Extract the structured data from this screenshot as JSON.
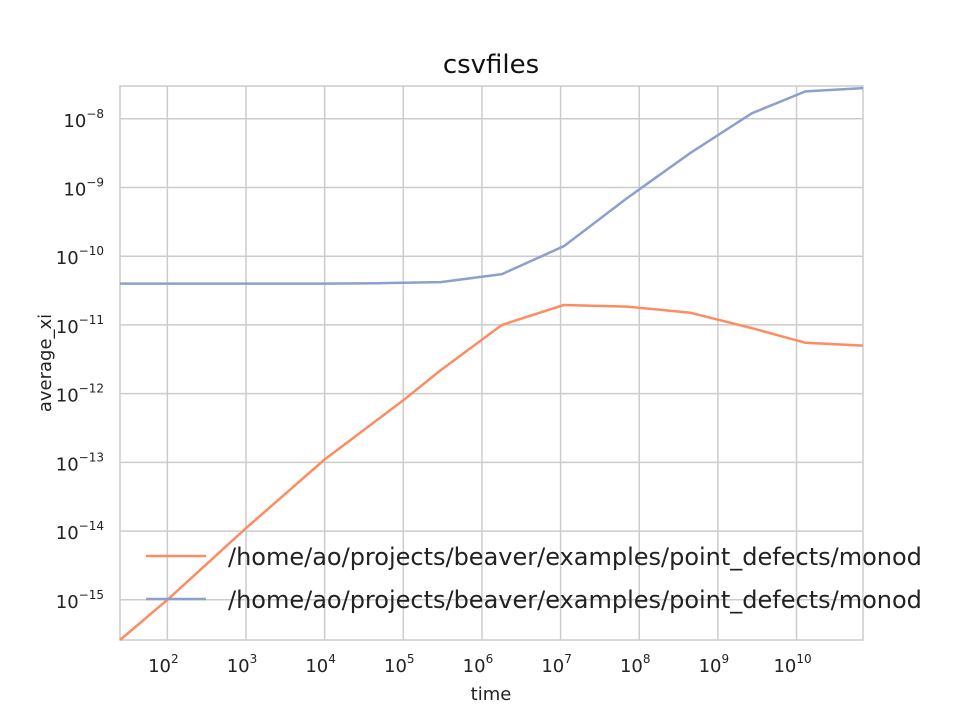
{
  "chart_data": {
    "type": "line",
    "title": "csvfiles",
    "xlabel": "time",
    "ylabel": "average_xi",
    "xscale": "log",
    "yscale": "log",
    "xlim": [
      25,
      70000000000
    ],
    "ylim": [
      2.6e-16,
      3e-08
    ],
    "grid": true,
    "legend_position": "lower-left",
    "x_ticks": [
      {
        "mantissa": "10",
        "exp": "2"
      },
      {
        "mantissa": "10",
        "exp": "3"
      },
      {
        "mantissa": "10",
        "exp": "4"
      },
      {
        "mantissa": "10",
        "exp": "5"
      },
      {
        "mantissa": "10",
        "exp": "6"
      },
      {
        "mantissa": "10",
        "exp": "7"
      },
      {
        "mantissa": "10",
        "exp": "8"
      },
      {
        "mantissa": "10",
        "exp": "9"
      },
      {
        "mantissa": "10",
        "exp": "10"
      }
    ],
    "y_ticks": [
      {
        "mantissa": "10",
        "exp": "−15"
      },
      {
        "mantissa": "10",
        "exp": "−14"
      },
      {
        "mantissa": "10",
        "exp": "−13"
      },
      {
        "mantissa": "10",
        "exp": "−12"
      },
      {
        "mantissa": "10",
        "exp": "−11"
      },
      {
        "mantissa": "10",
        "exp": "−10"
      },
      {
        "mantissa": "10",
        "exp": "−9"
      },
      {
        "mantissa": "10",
        "exp": "−8"
      }
    ],
    "series": [
      {
        "name": "/home/ao/projects/beaver/examples/point_defects/monod",
        "color": "#fc8d62",
        "x": [
          25,
          100,
          1000,
          10000,
          100000,
          300000,
          1800000,
          11000000,
          70000000,
          450000000,
          2700000000,
          13000000000,
          70000000000
        ],
        "y": [
          2.6e-16,
          1e-15,
          1.1e-14,
          1.1e-13,
          8e-13,
          2.2e-12,
          1e-11,
          1.95e-11,
          1.85e-11,
          1.5e-11,
          9e-12,
          5.5e-12,
          5e-12
        ]
      },
      {
        "name": "/home/ao/projects/beaver/examples/point_defects/monod",
        "color": "#8da0cb",
        "x": [
          25,
          1000,
          10000,
          50000,
          300000,
          1800000,
          11000000,
          70000000,
          450000000,
          2700000000,
          13000000000,
          70000000000
        ],
        "y": [
          4e-11,
          4e-11,
          4e-11,
          4.05e-11,
          4.2e-11,
          5.5e-11,
          1.4e-10,
          7e-10,
          3.2e-09,
          1.2e-08,
          2.5e-08,
          2.8e-08
        ]
      }
    ]
  }
}
